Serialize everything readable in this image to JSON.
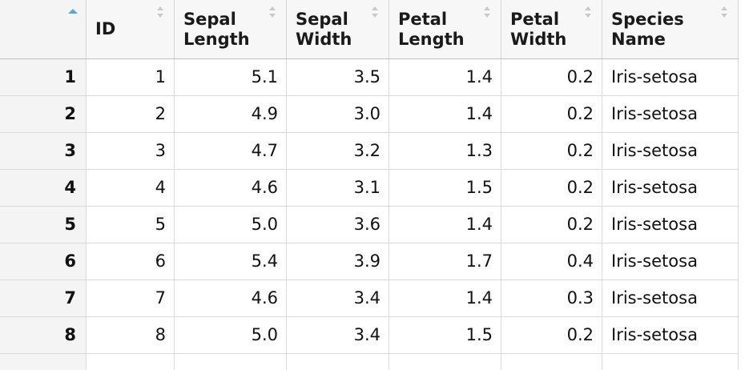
{
  "table": {
    "columns": [
      {
        "label": "",
        "sort": "asc"
      },
      {
        "label": "ID",
        "sort": "none"
      },
      {
        "label": "Sepal\nLength",
        "sort": "none"
      },
      {
        "label": "Sepal\nWidth",
        "sort": "none"
      },
      {
        "label": "Petal\nLength",
        "sort": "none"
      },
      {
        "label": "Petal\nWidth",
        "sort": "none"
      },
      {
        "label": "Species\nName",
        "sort": "none"
      }
    ],
    "rows": [
      {
        "rownum": "1",
        "id": "1",
        "sepal_length": "5.1",
        "sepal_width": "3.5",
        "petal_length": "1.4",
        "petal_width": "0.2",
        "species": "Iris-setosa"
      },
      {
        "rownum": "2",
        "id": "2",
        "sepal_length": "4.9",
        "sepal_width": "3.0",
        "petal_length": "1.4",
        "petal_width": "0.2",
        "species": "Iris-setosa"
      },
      {
        "rownum": "3",
        "id": "3",
        "sepal_length": "4.7",
        "sepal_width": "3.2",
        "petal_length": "1.3",
        "petal_width": "0.2",
        "species": "Iris-setosa"
      },
      {
        "rownum": "4",
        "id": "4",
        "sepal_length": "4.6",
        "sepal_width": "3.1",
        "petal_length": "1.5",
        "petal_width": "0.2",
        "species": "Iris-setosa"
      },
      {
        "rownum": "5",
        "id": "5",
        "sepal_length": "5.0",
        "sepal_width": "3.6",
        "petal_length": "1.4",
        "petal_width": "0.2",
        "species": "Iris-setosa"
      },
      {
        "rownum": "6",
        "id": "6",
        "sepal_length": "5.4",
        "sepal_width": "3.9",
        "petal_length": "1.7",
        "petal_width": "0.4",
        "species": "Iris-setosa"
      },
      {
        "rownum": "7",
        "id": "7",
        "sepal_length": "4.6",
        "sepal_width": "3.4",
        "petal_length": "1.4",
        "petal_width": "0.3",
        "species": "Iris-setosa"
      },
      {
        "rownum": "8",
        "id": "8",
        "sepal_length": "5.0",
        "sepal_width": "3.4",
        "petal_length": "1.5",
        "petal_width": "0.2",
        "species": "Iris-setosa"
      }
    ]
  },
  "colors": {
    "header_bg": "#f7f7f7",
    "rownum_bg": "#f4f4f4",
    "sort_active": "#5aa7e0",
    "sort_inactive": "#c9c9c9",
    "grid_line": "#d9d9d9"
  }
}
